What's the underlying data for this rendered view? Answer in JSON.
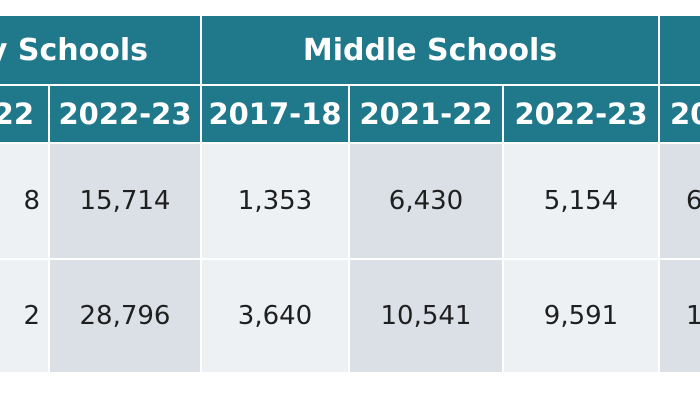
{
  "table": {
    "group_headers": [
      "y Schools",
      "Middle Schools",
      ""
    ],
    "year_headers": [
      "22",
      "2022-23",
      "2017-18",
      "2021-22",
      "2022-23",
      "20"
    ],
    "rows": [
      [
        "8",
        "15,714",
        "1,353",
        "6,430",
        "5,154",
        "6"
      ],
      [
        "2",
        "28,796",
        "3,640",
        "10,541",
        "9,591",
        "1"
      ]
    ]
  },
  "colors": {
    "header_bg": "#20788b",
    "header_text": "#ffffff",
    "cell_light": "#eef1f4",
    "cell_dark": "#dbe0e6",
    "cell_text": "#1f1f1f"
  }
}
